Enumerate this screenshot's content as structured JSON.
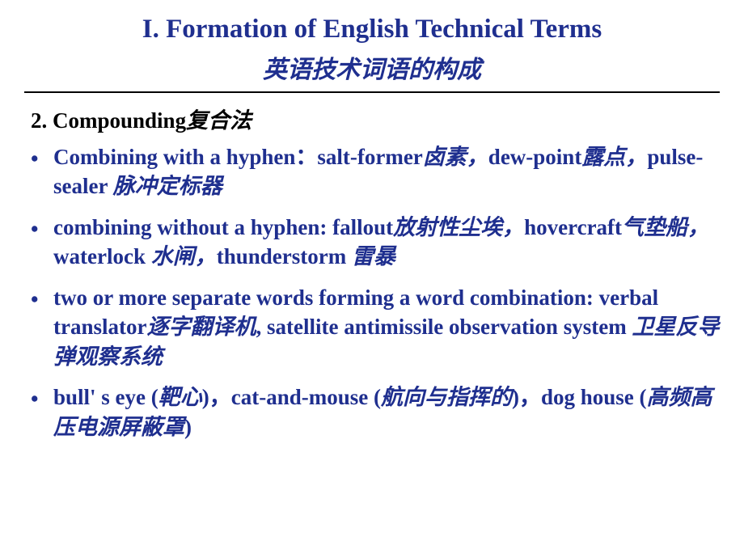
{
  "colors": {
    "title_color": "#1f2f8f",
    "heading_color": "#000000",
    "bullet_color": "#1f2f8f",
    "divider_color": "#000000",
    "background": "#ffffff"
  },
  "typography": {
    "title_fontsize": 33,
    "subtitle_fontsize": 30,
    "heading_fontsize": 27,
    "bullet_fontsize": 27,
    "font_family": "Times New Roman"
  },
  "title": {
    "en": "I. Formation of English Technical Terms",
    "zh": "英语技术词语的构成"
  },
  "section": {
    "number": "2.",
    "en": "Compounding",
    "zh": "复合法"
  },
  "bullets": [
    {
      "parts": [
        {
          "type": "en",
          "text": "Combining with a hyphen："
        },
        {
          "type": "en",
          "text": "salt-former"
        },
        {
          "type": "zh",
          "text": "卤素，"
        },
        {
          "type": "en",
          "text": "dew-point"
        },
        {
          "type": "zh",
          "text": "露点，"
        },
        {
          "type": "en",
          "text": "pulse-sealer "
        },
        {
          "type": "zh",
          "text": "脉冲定标器"
        }
      ]
    },
    {
      "parts": [
        {
          "type": "en",
          "text": "combining without a hyphen: fallout"
        },
        {
          "type": "zh",
          "text": "放射性尘埃，"
        },
        {
          "type": "en",
          "text": "hovercraft"
        },
        {
          "type": "zh",
          "text": "气垫船，"
        },
        {
          "type": "en",
          "text": "waterlock "
        },
        {
          "type": "zh",
          "text": "水闸，"
        },
        {
          "type": "en",
          "text": "thunderstorm "
        },
        {
          "type": "zh",
          "text": "雷暴"
        }
      ]
    },
    {
      "parts": [
        {
          "type": "en",
          "text": "two or more separate words forming a word combination: verbal translator"
        },
        {
          "type": "zh",
          "text": "逐字翻译机"
        },
        {
          "type": "en",
          "text": ", satellite antimissile observation system "
        },
        {
          "type": "zh",
          "text": "卫星反导弹观察系统"
        }
      ]
    },
    {
      "parts": [
        {
          "type": "en",
          "text": "bull' s eye ("
        },
        {
          "type": "zh",
          "text": "靶心"
        },
        {
          "type": "en",
          "text": ")，cat-and-mouse ("
        },
        {
          "type": "zh",
          "text": "航向与指挥的"
        },
        {
          "type": "en",
          "text": ")，dog house ("
        },
        {
          "type": "zh",
          "text": "高频高压电源屏蔽罩"
        },
        {
          "type": "en",
          "text": ")"
        }
      ]
    }
  ]
}
